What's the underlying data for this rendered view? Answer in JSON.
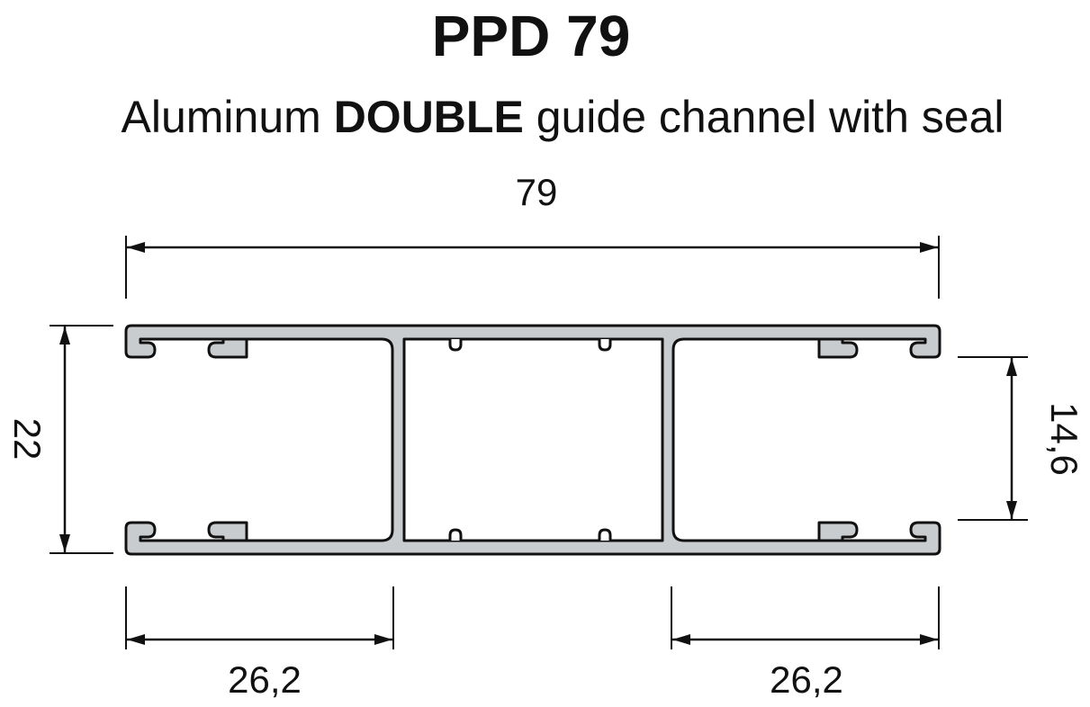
{
  "title": "PPD 79",
  "subtitle": {
    "before": "Aluminum ",
    "bold": "DOUBLE",
    "after": " guide channel with seal"
  },
  "dimensions": {
    "overall_width": "79",
    "overall_height": "22",
    "inner_height": "14,6",
    "left_section_width": "26,2",
    "right_section_width": "26,2"
  },
  "colors": {
    "profile_fill": "#c9ccce",
    "line": "#111111"
  }
}
